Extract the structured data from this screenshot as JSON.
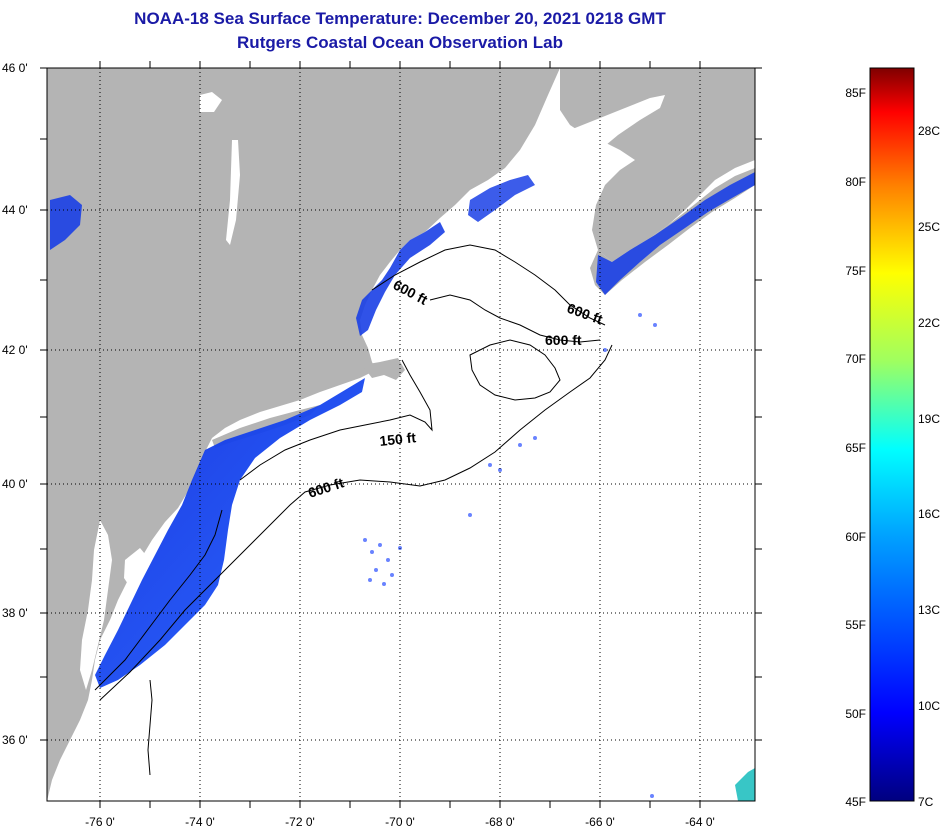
{
  "title": {
    "line1": "NOAA-18 Sea Surface Temperature:  December 20, 2021 0218 GMT",
    "line2": "Rutgers Coastal Ocean Observation Lab"
  },
  "map": {
    "lat_ticks": [
      "46 0'",
      "44 0'",
      "42 0'",
      "40 0'",
      "38 0'",
      "36 0'"
    ],
    "lon_ticks": [
      "-76 0'",
      "-74 0'",
      "-72 0'",
      "-70 0'",
      "-68 0'",
      "-66 0'",
      "-64 0'"
    ],
    "contour_labels": [
      "600 ft",
      "600 ft",
      "600 ft",
      "150 ft",
      "600 ft"
    ],
    "land_color": "#b4b4b4",
    "ocean_color": "#ffffff"
  },
  "colorbar": {
    "fahrenheit": [
      "85F",
      "80F",
      "75F",
      "70F",
      "65F",
      "60F",
      "55F",
      "50F",
      "45F"
    ],
    "celsius": [
      "28C",
      "25C",
      "22C",
      "19C",
      "16C",
      "13C",
      "10C",
      "7C"
    ],
    "colors": [
      "#00007f",
      "#0000ff",
      "#007fff",
      "#00ffff",
      "#7fff7f",
      "#ffff00",
      "#ff7f00",
      "#ff0000",
      "#7f0000"
    ]
  }
}
